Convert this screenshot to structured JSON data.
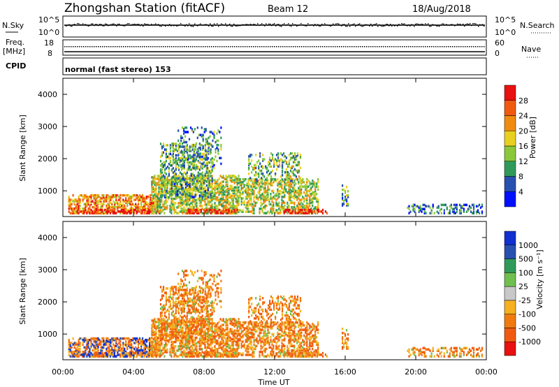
{
  "header": {
    "title": "Zhongshan Station (fitACF)",
    "beam": "Beam 12",
    "date": "18/Aug/2018"
  },
  "aux_panels": {
    "nsky": {
      "label": "N.Sky",
      "tick_top": "10^5",
      "tick_bot": "10^0",
      "right_label": "N.Search",
      "right_top": "10^5",
      "right_bot": "10^0"
    },
    "freq": {
      "label_1": "Freq.",
      "label_2": "[MHz]",
      "tick_top": "18",
      "tick_bot": "8",
      "right_label": "Nave",
      "right_top": "60",
      "right_bot": "0"
    },
    "cpid": {
      "label": "CPID",
      "text": "normal (fast stereo) 153"
    }
  },
  "chart_data": [
    {
      "type": "heatmap",
      "name": "power",
      "ylabel": "Slant Range [km]",
      "ylim": [
        200,
        4500
      ],
      "yticks": [
        "1000",
        "2000",
        "3000",
        "4000"
      ],
      "colorbar": {
        "label": "Power [dB]",
        "ticks": [
          "4",
          "8",
          "12",
          "16",
          "20",
          "24",
          "28"
        ],
        "colors": [
          "#0010ff",
          "#2850b0",
          "#2f9a5a",
          "#8ac83a",
          "#e8d020",
          "#f08a10",
          "#f05a10",
          "#e81010"
        ]
      }
    },
    {
      "type": "heatmap",
      "name": "velocity",
      "ylabel": "Slant Range [km]",
      "ylim": [
        200,
        4500
      ],
      "yticks": [
        "1000",
        "2000",
        "3000",
        "4000"
      ],
      "colorbar": {
        "label": "Velocity [m s⁻¹]",
        "ticks": [
          "-1000",
          "-500",
          "-100",
          "-25",
          "25",
          "100",
          "500",
          "1000"
        ],
        "colors": [
          "#e81010",
          "#f05a10",
          "#f07a10",
          "#f5b020",
          "#c8c8c8",
          "#70c050",
          "#2f9a5a",
          "#2850b0",
          "#1030d0"
        ]
      }
    }
  ],
  "x_axis": {
    "label": "Time UT",
    "ticks": [
      "00:00",
      "04:00",
      "08:00",
      "12:00",
      "16:00",
      "20:00",
      "00:00"
    ]
  }
}
